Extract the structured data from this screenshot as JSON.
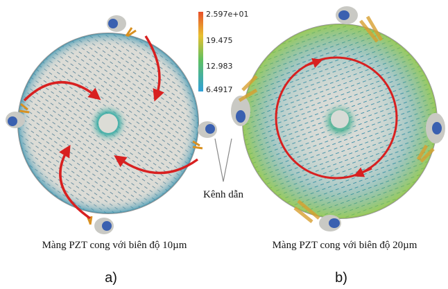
{
  "colorbar": {
    "labels": [
      "2.597e+01",
      "19.475",
      "12.983",
      "6.4917"
    ]
  },
  "annotation": "Kênh dẫn",
  "panels": [
    {
      "caption": "Màng PZT cong với biên độ 10µm",
      "label": "a)"
    },
    {
      "caption": "Màng PZT cong với biên độ 20µm",
      "label": "b)"
    }
  ]
}
